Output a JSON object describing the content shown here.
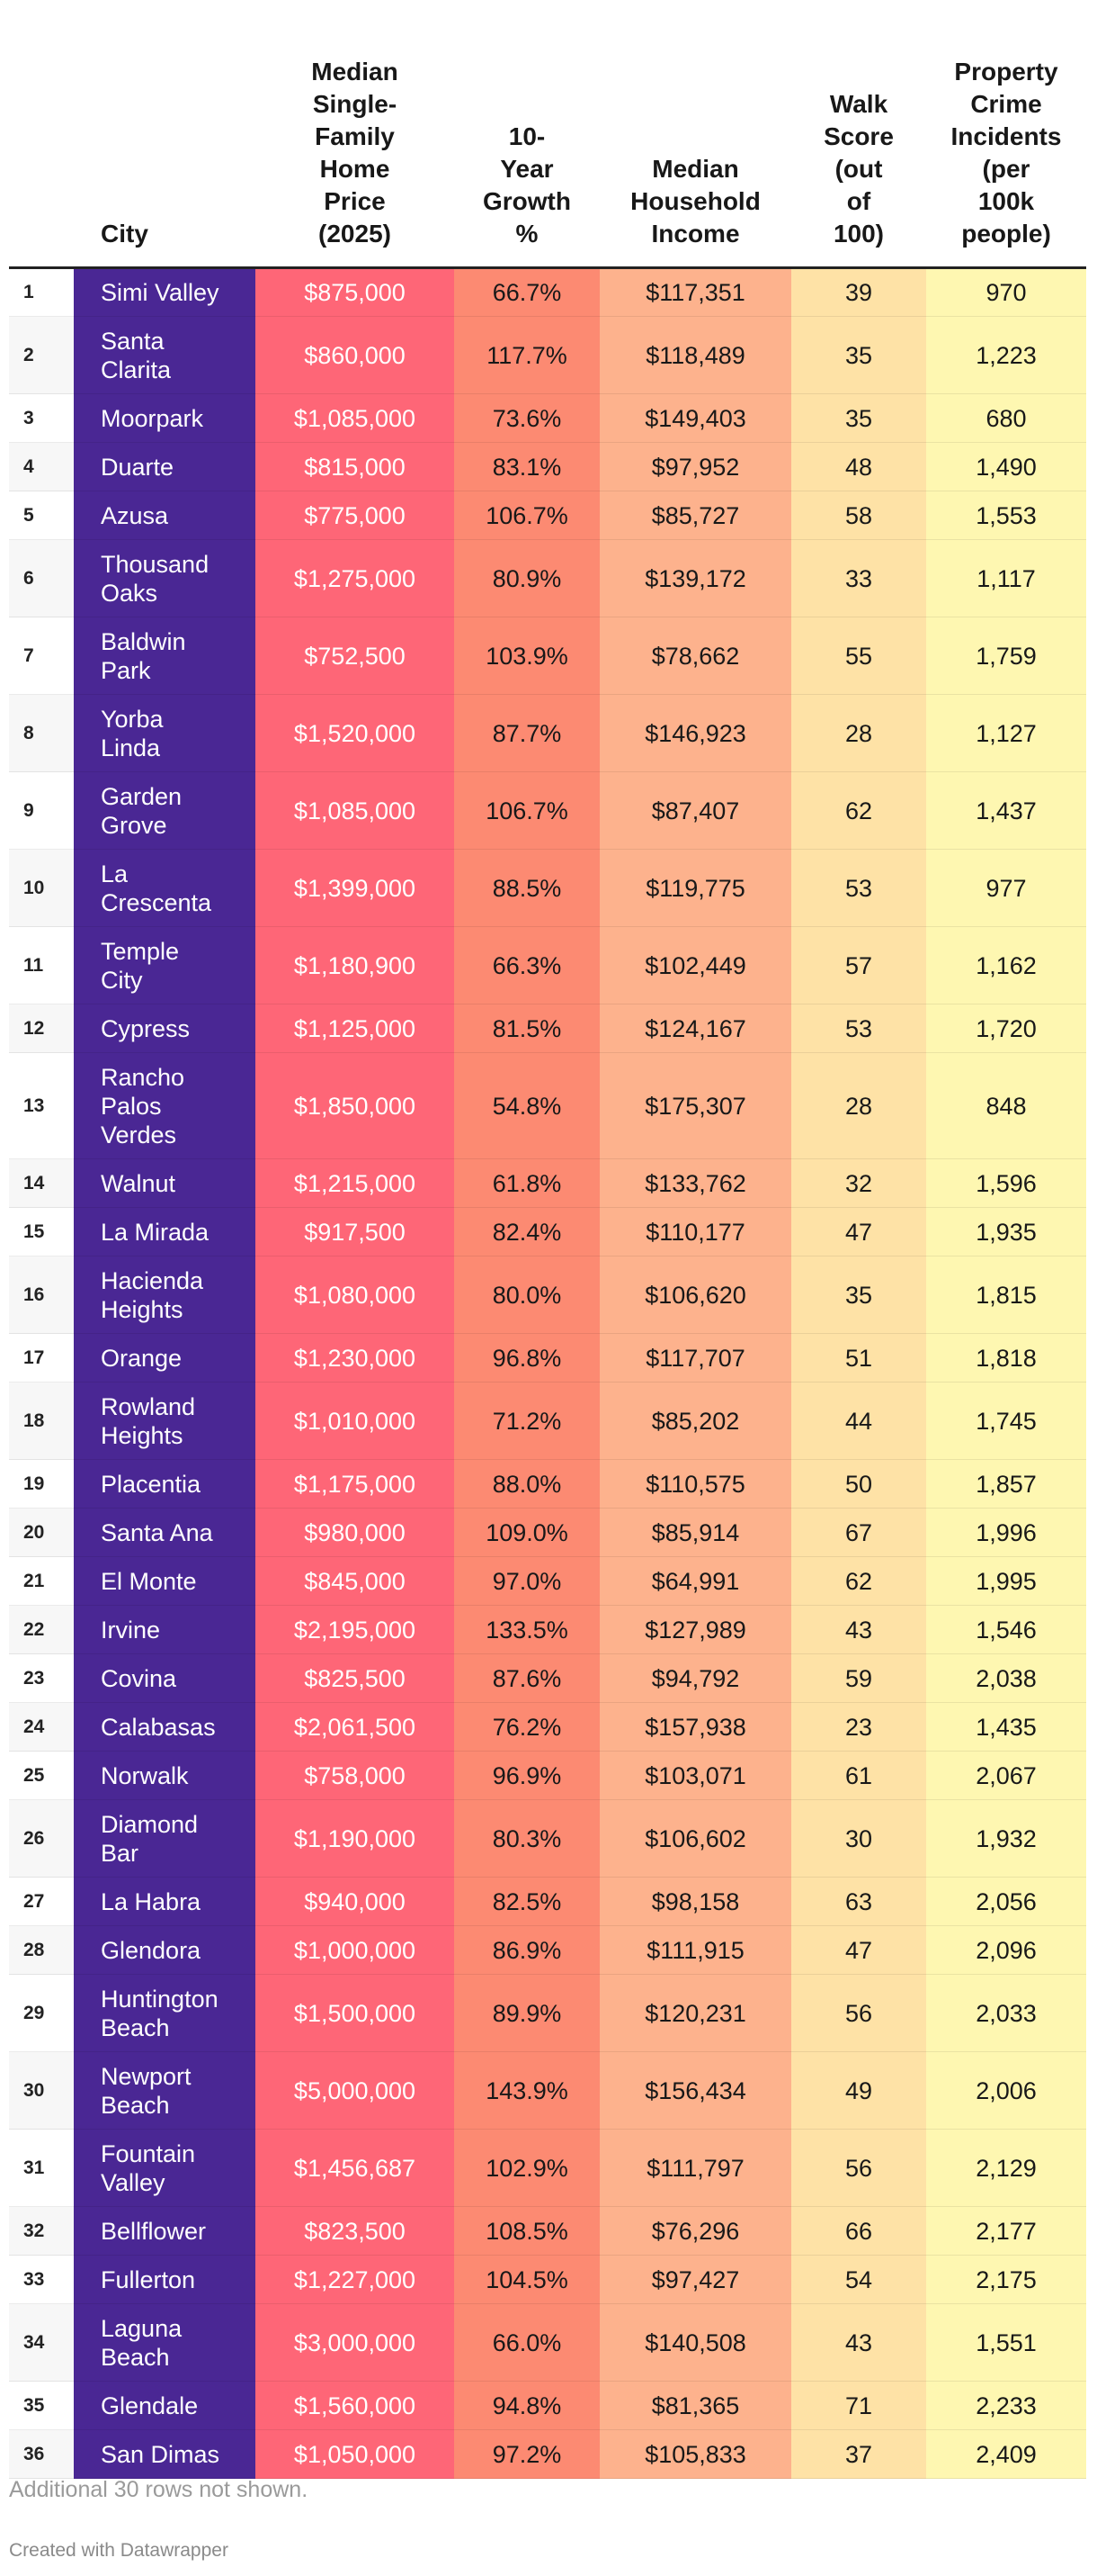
{
  "chart_data": {
    "type": "table",
    "columns": [
      {
        "key": "rank",
        "label": ""
      },
      {
        "key": "city",
        "label": "City"
      },
      {
        "key": "price",
        "label": "Median Single-Family Home Price (2025)"
      },
      {
        "key": "growth",
        "label": "10-Year Growth %"
      },
      {
        "key": "income",
        "label": "Median Household Income"
      },
      {
        "key": "walk",
        "label": "Walk Score (out of 100)"
      },
      {
        "key": "crime",
        "label": "Property Crime Incidents (per 100k people)"
      }
    ],
    "header_lines": {
      "city": [
        "City"
      ],
      "price": [
        "Median",
        "Single-",
        "Family",
        "Home",
        "Price",
        "(2025)"
      ],
      "growth": [
        "10-",
        "Year",
        "Growth",
        "%"
      ],
      "income": [
        "Median",
        "Household",
        "Income"
      ],
      "walk": [
        "Walk",
        "Score",
        "(out",
        "of",
        "100)"
      ],
      "crime": [
        "Property",
        "Crime",
        "Incidents",
        "(per",
        "100k",
        "people)"
      ]
    },
    "rows": [
      {
        "rank": "1",
        "city": [
          "Simi Valley"
        ],
        "price": "$875,000",
        "growth": "66.7%",
        "income": "$117,351",
        "walk": "39",
        "crime": "970"
      },
      {
        "rank": "2",
        "city": [
          "Santa",
          "Clarita"
        ],
        "price": "$860,000",
        "growth": "117.7%",
        "income": "$118,489",
        "walk": "35",
        "crime": "1,223"
      },
      {
        "rank": "3",
        "city": [
          "Moorpark"
        ],
        "price": "$1,085,000",
        "growth": "73.6%",
        "income": "$149,403",
        "walk": "35",
        "crime": "680"
      },
      {
        "rank": "4",
        "city": [
          "Duarte"
        ],
        "price": "$815,000",
        "growth": "83.1%",
        "income": "$97,952",
        "walk": "48",
        "crime": "1,490"
      },
      {
        "rank": "5",
        "city": [
          "Azusa"
        ],
        "price": "$775,000",
        "growth": "106.7%",
        "income": "$85,727",
        "walk": "58",
        "crime": "1,553"
      },
      {
        "rank": "6",
        "city": [
          "Thousand",
          "Oaks"
        ],
        "price": "$1,275,000",
        "growth": "80.9%",
        "income": "$139,172",
        "walk": "33",
        "crime": "1,117"
      },
      {
        "rank": "7",
        "city": [
          "Baldwin",
          "Park"
        ],
        "price": "$752,500",
        "growth": "103.9%",
        "income": "$78,662",
        "walk": "55",
        "crime": "1,759"
      },
      {
        "rank": "8",
        "city": [
          "Yorba",
          "Linda"
        ],
        "price": "$1,520,000",
        "growth": "87.7%",
        "income": "$146,923",
        "walk": "28",
        "crime": "1,127"
      },
      {
        "rank": "9",
        "city": [
          "Garden",
          "Grove"
        ],
        "price": "$1,085,000",
        "growth": "106.7%",
        "income": "$87,407",
        "walk": "62",
        "crime": "1,437"
      },
      {
        "rank": "10",
        "city": [
          "La",
          "Crescenta"
        ],
        "price": "$1,399,000",
        "growth": "88.5%",
        "income": "$119,775",
        "walk": "53",
        "crime": "977"
      },
      {
        "rank": "11",
        "city": [
          "Temple",
          "City"
        ],
        "price": "$1,180,900",
        "growth": "66.3%",
        "income": "$102,449",
        "walk": "57",
        "crime": "1,162"
      },
      {
        "rank": "12",
        "city": [
          "Cypress"
        ],
        "price": "$1,125,000",
        "growth": "81.5%",
        "income": "$124,167",
        "walk": "53",
        "crime": "1,720"
      },
      {
        "rank": "13",
        "city": [
          "Rancho",
          "Palos",
          "Verdes"
        ],
        "price": "$1,850,000",
        "growth": "54.8%",
        "income": "$175,307",
        "walk": "28",
        "crime": "848"
      },
      {
        "rank": "14",
        "city": [
          "Walnut"
        ],
        "price": "$1,215,000",
        "growth": "61.8%",
        "income": "$133,762",
        "walk": "32",
        "crime": "1,596"
      },
      {
        "rank": "15",
        "city": [
          "La Mirada"
        ],
        "price": "$917,500",
        "growth": "82.4%",
        "income": "$110,177",
        "walk": "47",
        "crime": "1,935"
      },
      {
        "rank": "16",
        "city": [
          "Hacienda",
          "Heights"
        ],
        "price": "$1,080,000",
        "growth": "80.0%",
        "income": "$106,620",
        "walk": "35",
        "crime": "1,815"
      },
      {
        "rank": "17",
        "city": [
          "Orange"
        ],
        "price": "$1,230,000",
        "growth": "96.8%",
        "income": "$117,707",
        "walk": "51",
        "crime": "1,818"
      },
      {
        "rank": "18",
        "city": [
          "Rowland",
          "Heights"
        ],
        "price": "$1,010,000",
        "growth": "71.2%",
        "income": "$85,202",
        "walk": "44",
        "crime": "1,745"
      },
      {
        "rank": "19",
        "city": [
          "Placentia"
        ],
        "price": "$1,175,000",
        "growth": "88.0%",
        "income": "$110,575",
        "walk": "50",
        "crime": "1,857"
      },
      {
        "rank": "20",
        "city": [
          "Santa Ana"
        ],
        "price": "$980,000",
        "growth": "109.0%",
        "income": "$85,914",
        "walk": "67",
        "crime": "1,996"
      },
      {
        "rank": "21",
        "city": [
          "El Monte"
        ],
        "price": "$845,000",
        "growth": "97.0%",
        "income": "$64,991",
        "walk": "62",
        "crime": "1,995"
      },
      {
        "rank": "22",
        "city": [
          "Irvine"
        ],
        "price": "$2,195,000",
        "growth": "133.5%",
        "income": "$127,989",
        "walk": "43",
        "crime": "1,546"
      },
      {
        "rank": "23",
        "city": [
          "Covina"
        ],
        "price": "$825,500",
        "growth": "87.6%",
        "income": "$94,792",
        "walk": "59",
        "crime": "2,038"
      },
      {
        "rank": "24",
        "city": [
          "Calabasas"
        ],
        "price": "$2,061,500",
        "growth": "76.2%",
        "income": "$157,938",
        "walk": "23",
        "crime": "1,435"
      },
      {
        "rank": "25",
        "city": [
          "Norwalk"
        ],
        "price": "$758,000",
        "growth": "96.9%",
        "income": "$103,071",
        "walk": "61",
        "crime": "2,067"
      },
      {
        "rank": "26",
        "city": [
          "Diamond",
          "Bar"
        ],
        "price": "$1,190,000",
        "growth": "80.3%",
        "income": "$106,602",
        "walk": "30",
        "crime": "1,932"
      },
      {
        "rank": "27",
        "city": [
          "La Habra"
        ],
        "price": "$940,000",
        "growth": "82.5%",
        "income": "$98,158",
        "walk": "63",
        "crime": "2,056"
      },
      {
        "rank": "28",
        "city": [
          "Glendora"
        ],
        "price": "$1,000,000",
        "growth": "86.9%",
        "income": "$111,915",
        "walk": "47",
        "crime": "2,096"
      },
      {
        "rank": "29",
        "city": [
          "Huntington",
          "Beach"
        ],
        "price": "$1,500,000",
        "growth": "89.9%",
        "income": "$120,231",
        "walk": "56",
        "crime": "2,033"
      },
      {
        "rank": "30",
        "city": [
          "Newport",
          "Beach"
        ],
        "price": "$5,000,000",
        "growth": "143.9%",
        "income": "$156,434",
        "walk": "49",
        "crime": "2,006"
      },
      {
        "rank": "31",
        "city": [
          "Fountain",
          "Valley"
        ],
        "price": "$1,456,687",
        "growth": "102.9%",
        "income": "$111,797",
        "walk": "56",
        "crime": "2,129"
      },
      {
        "rank": "32",
        "city": [
          "Bellflower"
        ],
        "price": "$823,500",
        "growth": "108.5%",
        "income": "$76,296",
        "walk": "66",
        "crime": "2,177"
      },
      {
        "rank": "33",
        "city": [
          "Fullerton"
        ],
        "price": "$1,227,000",
        "growth": "104.5%",
        "income": "$97,427",
        "walk": "54",
        "crime": "2,175"
      },
      {
        "rank": "34",
        "city": [
          "Laguna",
          "Beach"
        ],
        "price": "$3,000,000",
        "growth": "66.0%",
        "income": "$140,508",
        "walk": "43",
        "crime": "1,551"
      },
      {
        "rank": "35",
        "city": [
          "Glendale"
        ],
        "price": "$1,560,000",
        "growth": "94.8%",
        "income": "$81,365",
        "walk": "71",
        "crime": "2,233"
      },
      {
        "rank": "36",
        "city": [
          "San Dimas"
        ],
        "price": "$1,050,000",
        "growth": "97.2%",
        "income": "$105,833",
        "walk": "37",
        "crime": "2,409"
      }
    ],
    "column_colors": {
      "city": "#4a2794",
      "price": "#fe6677",
      "growth": "#fc8a72",
      "income": "#fdb28d",
      "walk": "#fee2a6",
      "crime": "#fef7b1"
    }
  },
  "footer": {
    "note": "Additional 30 rows not shown.",
    "credit": "Created with Datawrapper"
  }
}
